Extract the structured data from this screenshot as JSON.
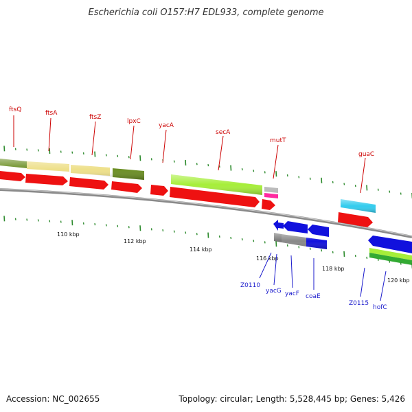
{
  "title": "Escherichia coli O157:H7 EDL933, complete genome",
  "footer": {
    "accession": "Accession: NC_002655",
    "topology": "Topology: circular; Length: 5,528,445 bp; Genes: 5,426"
  },
  "colors": {
    "backbone": "#8a8a8a",
    "forward_cds": "#ee1111",
    "reverse_cds": "#1111dd",
    "forward_label": "#cc0000",
    "reverse_label": "#1a1acc",
    "tick": "#2e8b2e",
    "cog_olive": "#6b8e23",
    "cog_khaki": "#eee08a",
    "cog_lime": "#a6ee3a",
    "cog_cyan": "#33ccee",
    "cog_gray": "#777777",
    "cog_green": "#33aa33",
    "rna_pink": "#ff2aa0"
  },
  "scale": {
    "ticks": [
      {
        "label": "110 kbp"
      },
      {
        "label": "112 kbp"
      },
      {
        "label": "114 kbp"
      },
      {
        "label": "116 kbp"
      },
      {
        "label": "118 kbp"
      },
      {
        "label": "120 kbp"
      }
    ]
  },
  "forward_labels": [
    "ftsQ",
    "ftsA",
    "ftsZ",
    "lpxC",
    "yacA",
    "secA",
    "mutT",
    "guaC"
  ],
  "reverse_labels": [
    "Z0110",
    "yacG",
    "yacF",
    "coaE",
    "Z0115",
    "hofC"
  ]
}
